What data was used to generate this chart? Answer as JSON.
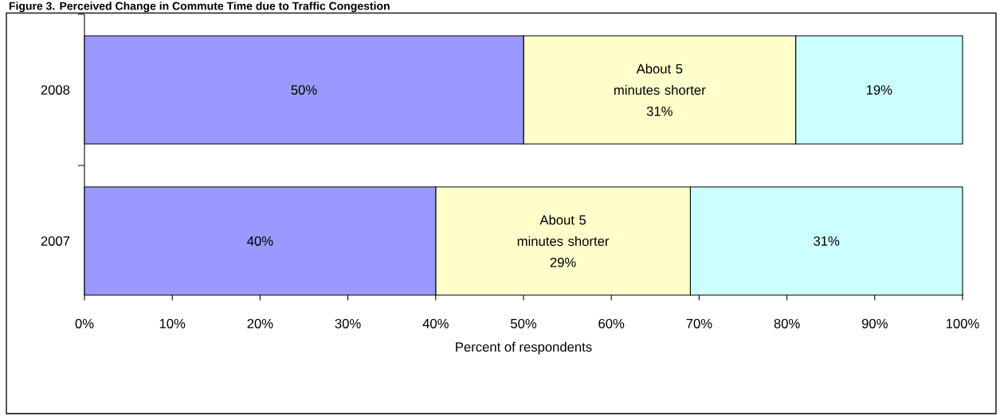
{
  "chart_data": {
    "type": "bar",
    "title": "Figure 3. Perceived Change in Commute Time due to Traffic Congestion",
    "orientation": "horizontal",
    "stacked": true,
    "categories": [
      "2008",
      "2007"
    ],
    "series": [
      {
        "color": "#9999ff",
        "values": [
          50,
          40
        ],
        "value_labels": [
          "50%",
          "40%"
        ]
      },
      {
        "name": "About 5 minutes shorter",
        "color": "#ffffcc",
        "values": [
          31,
          29
        ],
        "value_labels": [
          "31%",
          "29%"
        ]
      },
      {
        "color": "#ccffff",
        "values": [
          19,
          31
        ],
        "value_labels": [
          "19%",
          "31%"
        ]
      }
    ],
    "xlabel": "Percent of respondents",
    "xlim": [
      0,
      100
    ],
    "xticks": [
      {
        "value": 0,
        "label": "0%"
      },
      {
        "value": 10,
        "label": "10%"
      },
      {
        "value": 20,
        "label": "20%"
      },
      {
        "value": 30,
        "label": "30%"
      },
      {
        "value": 40,
        "label": "40%"
      },
      {
        "value": 50,
        "label": "50%"
      },
      {
        "value": 60,
        "label": "60%"
      },
      {
        "value": 70,
        "label": "70%"
      },
      {
        "value": 80,
        "label": "80%"
      },
      {
        "value": 90,
        "label": "90%"
      },
      {
        "value": 100,
        "label": "100%"
      }
    ],
    "grid": false
  }
}
